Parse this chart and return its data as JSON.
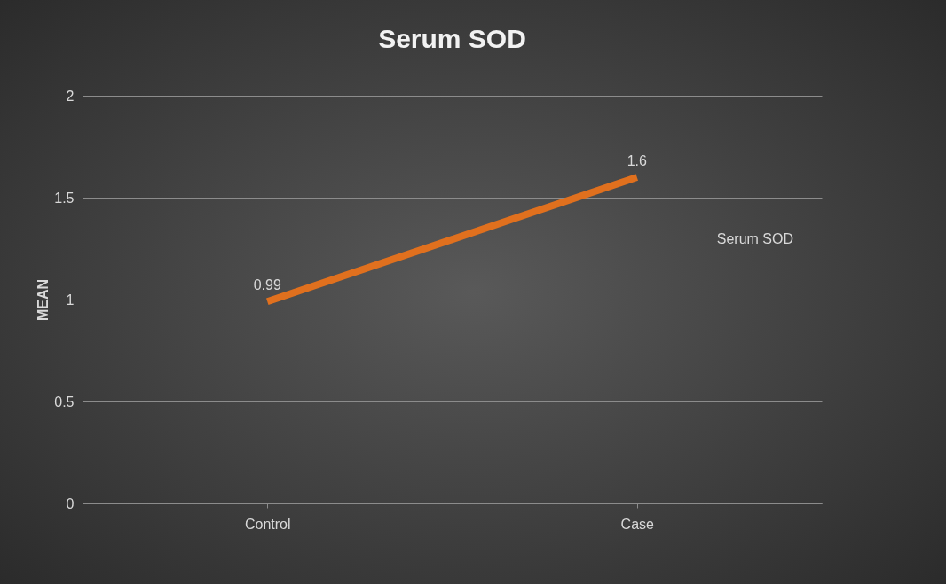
{
  "chart_data": {
    "type": "line",
    "title": "Serum SOD",
    "ylabel": "MEAN",
    "categories": [
      "Control",
      "Case"
    ],
    "series": [
      {
        "name": "Serum SOD",
        "color": "#e0701e",
        "values": [
          0.99,
          1.6
        ]
      }
    ],
    "ylim": [
      0,
      2
    ],
    "yticks": [
      0,
      0.5,
      1,
      1.5,
      2
    ],
    "grid": "y",
    "data_labels": true,
    "legend": false,
    "marker": "none",
    "line_style": "solid"
  }
}
